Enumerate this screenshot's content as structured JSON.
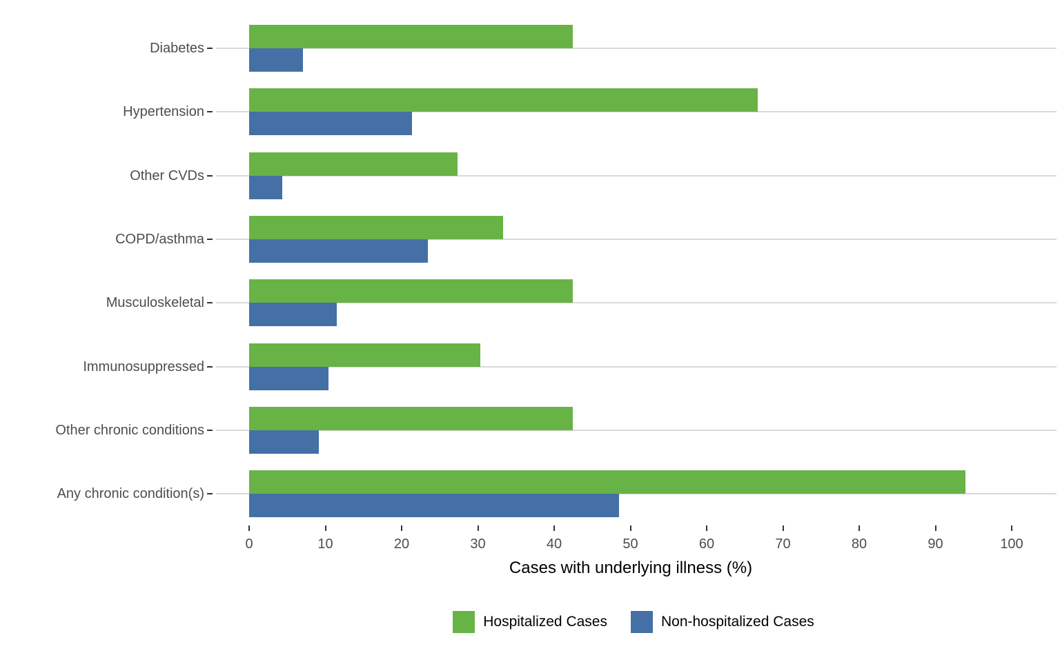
{
  "figure": {
    "xlabel": "Cases with underlying illness (%)"
  },
  "chart_data": {
    "type": "bar",
    "orientation": "horizontal",
    "title": "",
    "xlabel": "Cases with underlying illness (%)",
    "ylabel": "",
    "categories": [
      "Diabetes",
      "Hypertension",
      "Other CVDs",
      "COPD/asthma",
      "Musculoskeletal",
      "Immunosuppressed",
      "Other chronic conditions",
      "Any chronic condition(s)"
    ],
    "series": [
      {
        "name": "Hospitalized Cases",
        "color": "#68b345",
        "values": [
          42.4,
          66.7,
          27.3,
          33.3,
          42.4,
          30.3,
          42.4,
          93.9
        ]
      },
      {
        "name": "Non-hospitalized Cases",
        "color": "#4470a6",
        "values": [
          7.1,
          21.4,
          4.3,
          23.4,
          11.5,
          10.4,
          9.1,
          48.5
        ]
      }
    ],
    "xticks": [
      0,
      10,
      20,
      30,
      40,
      50,
      60,
      70,
      80,
      90,
      100
    ],
    "xlim": [
      0,
      105.8
    ],
    "grid": "horizontal category lines only",
    "legend_position": "bottom-center",
    "colors": {
      "hospitalized": "#68b345",
      "non_hospitalized": "#4470a6",
      "gridline": "#d9d9d9",
      "tick": "#333333",
      "axis_text": "#4d4d4d",
      "title_text": "#000000",
      "background": "#ffffff"
    }
  }
}
